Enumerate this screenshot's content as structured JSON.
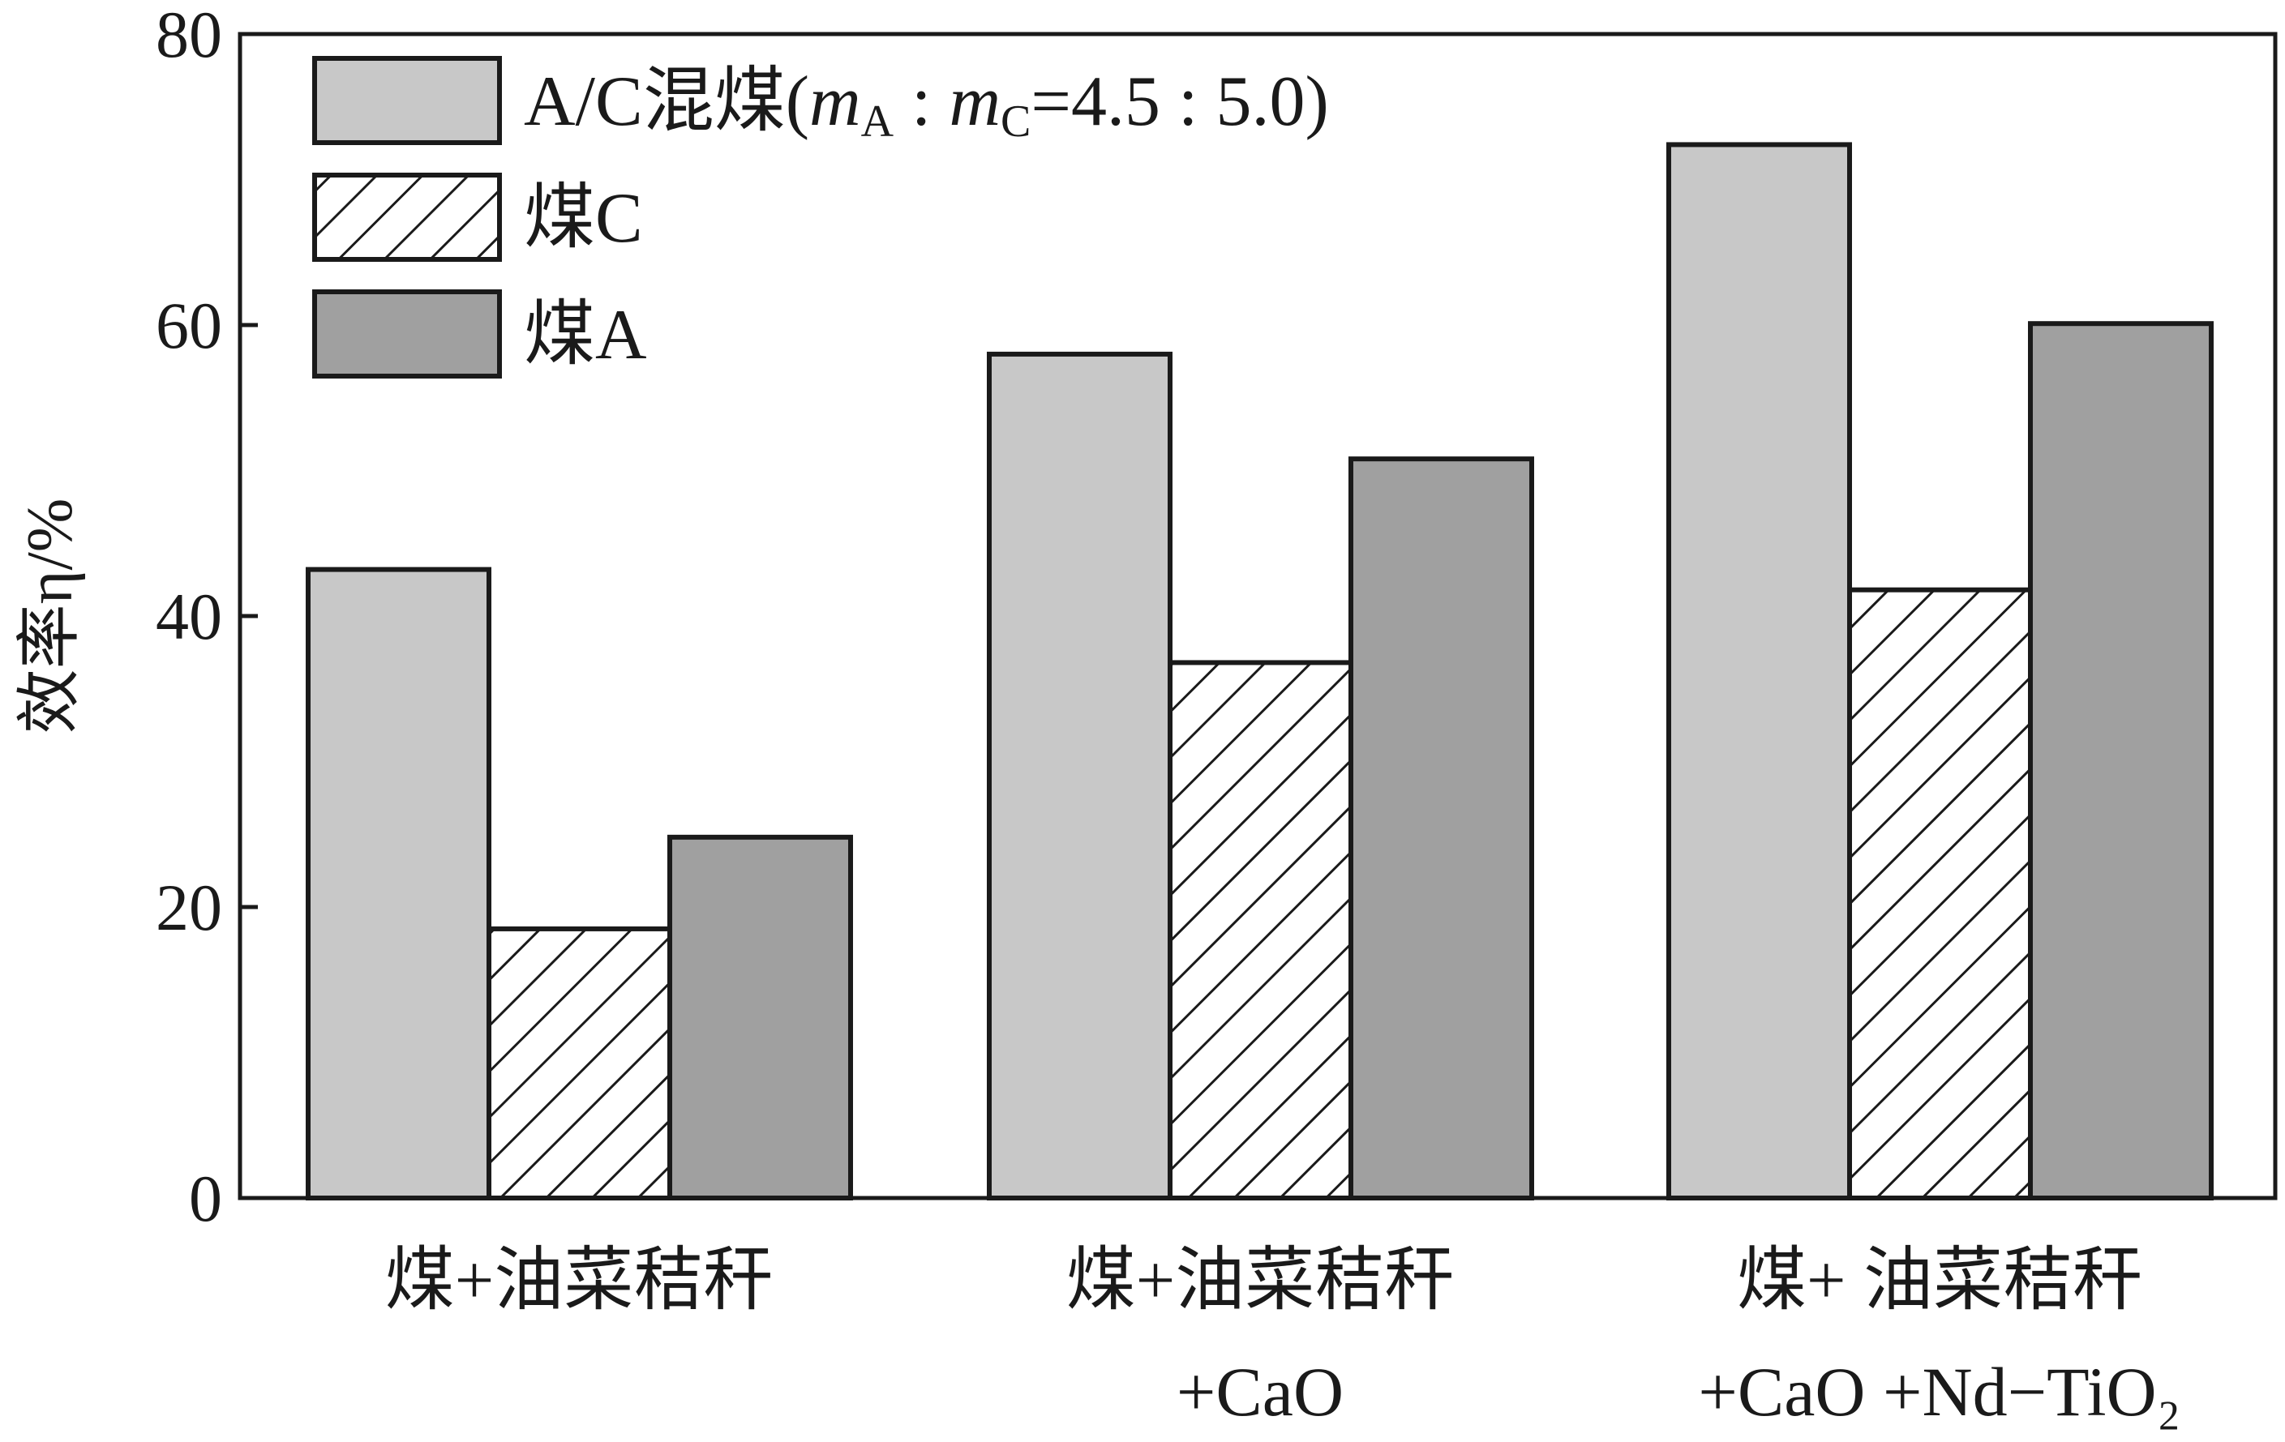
{
  "chart_data": {
    "type": "bar",
    "ylabel": "效率η/%",
    "ylim": [
      0,
      80
    ],
    "yticks": [
      "0",
      "20",
      "40",
      "60",
      "80"
    ],
    "categories": [
      [
        "煤+油菜秸秆"
      ],
      [
        "煤+油菜秸秆",
        "+CaO"
      ],
      [
        "煤+ 油菜秸秆",
        "+CaO +Nd−TiO₂"
      ]
    ],
    "series": [
      {
        "name": "A/C混煤(mA : mC=4.5 : 5.0)",
        "values": [
          43.2,
          58.0,
          72.4
        ],
        "fill": "light",
        "color": "#c8c8c8"
      },
      {
        "name": "煤C",
        "values": [
          18.5,
          36.8,
          41.8
        ],
        "fill": "hatch",
        "color": "#ffffff"
      },
      {
        "name": "煤A",
        "values": [
          24.8,
          50.8,
          60.1
        ],
        "fill": "dark",
        "color": "#a0a0a0"
      }
    ],
    "legend": {
      "position": "top-left",
      "items": [
        {
          "main": "A/C混煤(",
          "m1": "m",
          "s1": "A",
          "sep": " : ",
          "m2": "m",
          "s2": "C",
          "tail": "=4.5 : 5.0)"
        },
        {
          "main": "煤C"
        },
        {
          "main": "煤A"
        }
      ]
    },
    "colors": {
      "axis": "#1a1a1a",
      "light": "#c8c8c8",
      "dark": "#a0a0a0",
      "hatch_bg": "#ffffff"
    }
  }
}
